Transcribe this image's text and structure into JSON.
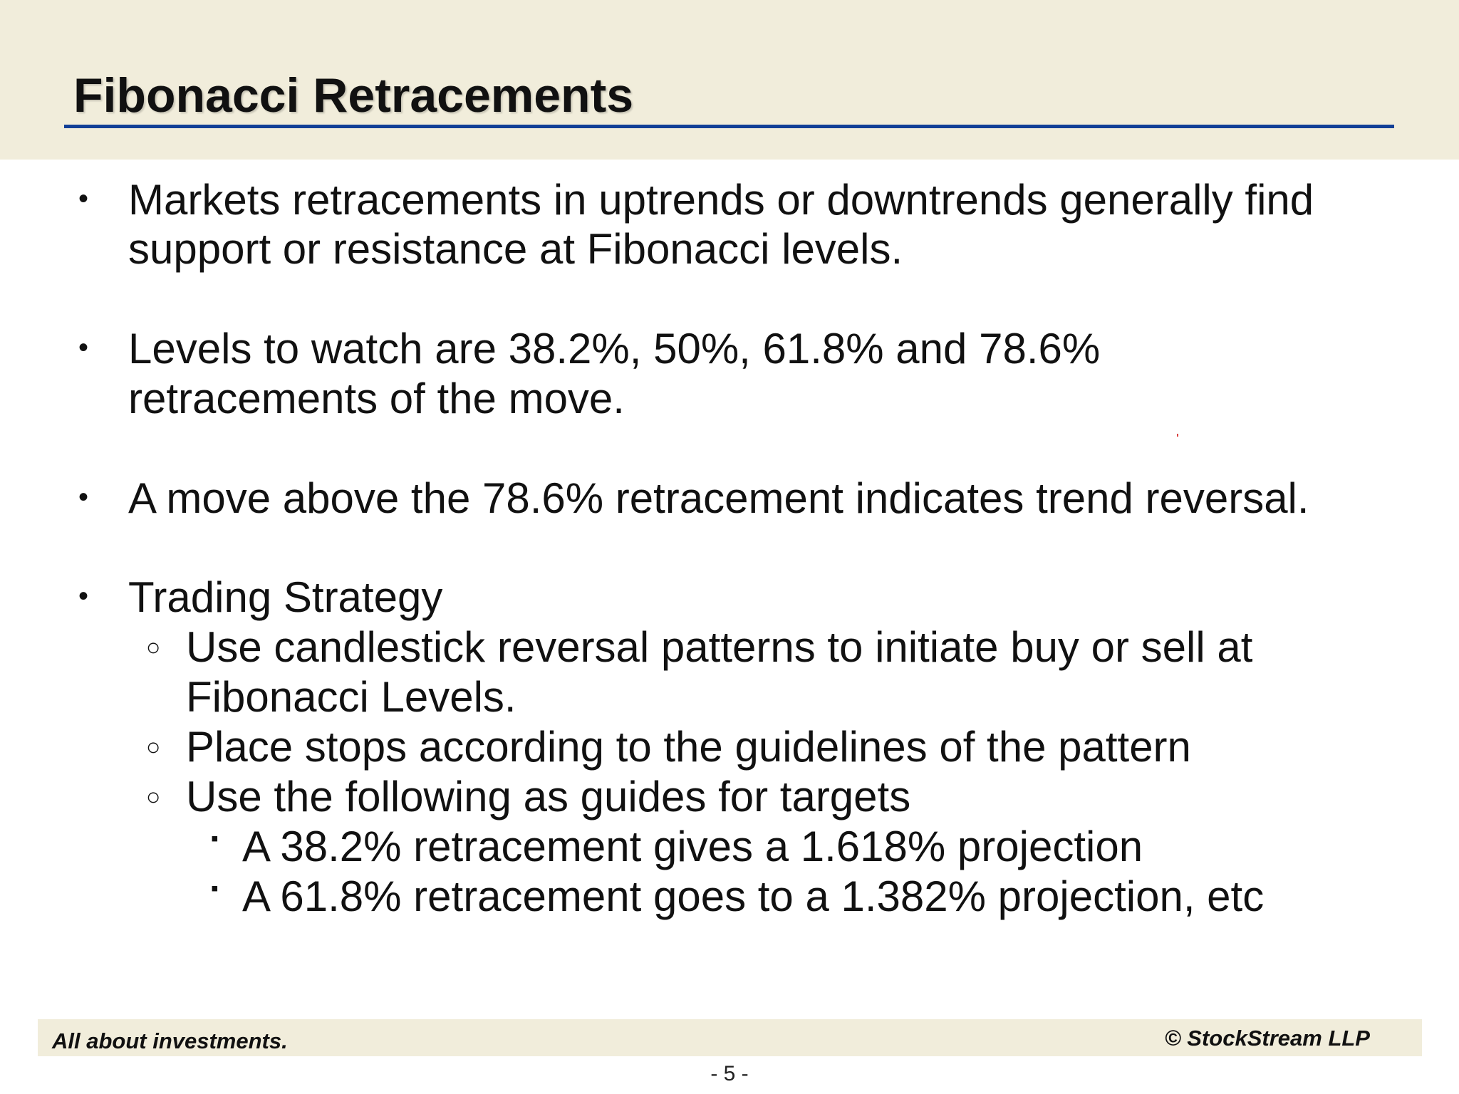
{
  "slide": {
    "title": "Fibonacci Retracements"
  },
  "bullets": [
    {
      "lines": [
        "Markets retracements in uptrends or downtrends generally find",
        "support or resistance at Fibonacci levels."
      ]
    },
    {
      "lines": [
        "Levels to watch are 38.2%, 50%, 61.8% and 78.6%",
        "retracements of the move."
      ]
    },
    {
      "lines": [
        "A move above the 78.6% retracement indicates trend reversal."
      ]
    },
    {
      "lines": [
        "Trading Strategy"
      ],
      "sub": [
        {
          "lines": [
            "Use candlestick reversal patterns to initiate buy or sell at",
            "Fibonacci Levels."
          ]
        },
        {
          "lines": [
            "Place stops according to the guidelines of the pattern"
          ]
        },
        {
          "lines": [
            "Use the following as guides for targets"
          ],
          "sub": [
            {
              "lines": [
                "A 38.2% retracement gives a 1.618% projection"
              ]
            },
            {
              "lines": [
                "A 61.8% retracement goes to a 1.382% projection, etc"
              ]
            }
          ]
        }
      ]
    }
  ],
  "bullet_glyphs": {
    "level1": "•",
    "level2": "○",
    "level3": "▪"
  },
  "footer": {
    "tagline": "All about investments.",
    "copyright": "© StockStream LLP",
    "page_number": "- 5 -"
  },
  "colors": {
    "band": "#f1eddb",
    "title_rule": "#123f96",
    "text": "#111111"
  }
}
